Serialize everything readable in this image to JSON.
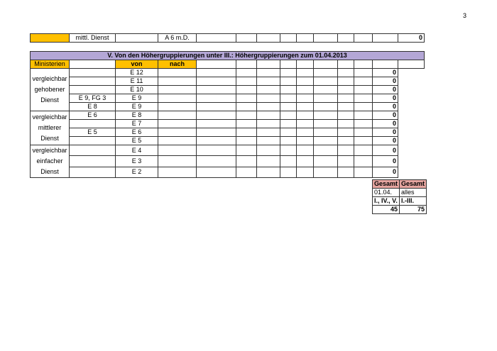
{
  "page_number": "3",
  "top_row": {
    "group": "mittl. Dienst",
    "nach": "A 6 m.D.",
    "total": "0"
  },
  "section": {
    "title": "V. Von den Höhergruppierungen unter III.: Höhergruppierungen zum 01.04.2013",
    "org": "Ministerien",
    "von_label": "von",
    "nach_label": "nach",
    "groups": [
      "vergleichbar gehobener Dienst",
      "vergleichbar mittlerer Dienst",
      "vergleichbar einfacher Dienst"
    ],
    "rows": [
      {
        "von": "",
        "nach": "E 12",
        "total": "0"
      },
      {
        "von": "",
        "nach": "E 11",
        "total": "0"
      },
      {
        "von": "",
        "nach": "E 10",
        "total": "0"
      },
      {
        "von": "E 9, FG 3",
        "nach": "E 9",
        "total": "0"
      },
      {
        "von": "E 8",
        "nach": "E 9",
        "total": "0"
      },
      {
        "von": "E 6",
        "nach": "E 8",
        "total": "0"
      },
      {
        "von": "",
        "nach": "E 7",
        "total": "0"
      },
      {
        "von": "E 5",
        "nach": "E 6",
        "total": "0"
      },
      {
        "von": "",
        "nach": "E 5",
        "total": "0"
      },
      {
        "von": "",
        "nach": "E 4",
        "total": "0"
      },
      {
        "von": "",
        "nach": "E 3",
        "total": "0"
      },
      {
        "von": "",
        "nach": "E 2",
        "total": "0"
      }
    ]
  },
  "summary": {
    "h1": "Gesamt",
    "h2": "Gesamt",
    "r1c1": "01.04.",
    "r1c2": "alles",
    "r2c1": "I., IV., V.",
    "r2c2": "I.-III.",
    "v1": "45",
    "v2": "75"
  },
  "colors": {
    "org": "#ffc000",
    "title": "#b4a7d6",
    "summary_header": "#e6a5a0"
  }
}
